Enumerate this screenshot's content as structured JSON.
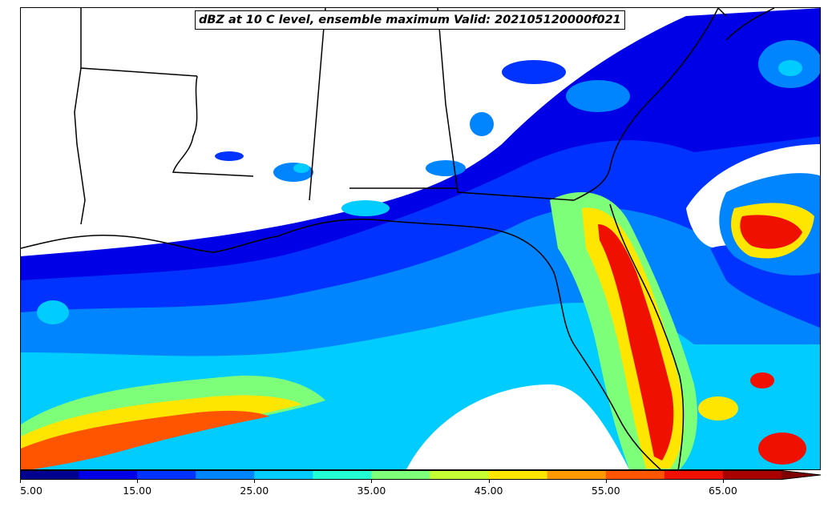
{
  "title": "dBZ at 10 C level, ensemble maximum Valid: 202105120000f021",
  "colorbar": {
    "min": 5,
    "max": 70,
    "extend": "max",
    "bins": [
      {
        "from": 5,
        "to": 10,
        "color": "#00008f"
      },
      {
        "from": 10,
        "to": 15,
        "color": "#0000e6"
      },
      {
        "from": 15,
        "to": 20,
        "color": "#0033ff"
      },
      {
        "from": 20,
        "to": 25,
        "color": "#0085ff"
      },
      {
        "from": 25,
        "to": 30,
        "color": "#00ccff"
      },
      {
        "from": 30,
        "to": 35,
        "color": "#23ffd4"
      },
      {
        "from": 35,
        "to": 40,
        "color": "#7dff7a"
      },
      {
        "from": 40,
        "to": 45,
        "color": "#c4ff33"
      },
      {
        "from": 45,
        "to": 50,
        "color": "#ffe600"
      },
      {
        "from": 50,
        "to": 55,
        "color": "#ff9900"
      },
      {
        "from": 55,
        "to": 60,
        "color": "#ff5500"
      },
      {
        "from": 60,
        "to": 65,
        "color": "#f01000"
      },
      {
        "from": 65,
        "to": 70,
        "color": "#a80000"
      }
    ],
    "extend_color": "#7f0000",
    "tick_labels": [
      "5.00",
      "15.00",
      "25.00",
      "35.00",
      "45.00",
      "55.00",
      "65.00"
    ],
    "tick_values": [
      5,
      15,
      25,
      35,
      45,
      55,
      65
    ]
  }
}
